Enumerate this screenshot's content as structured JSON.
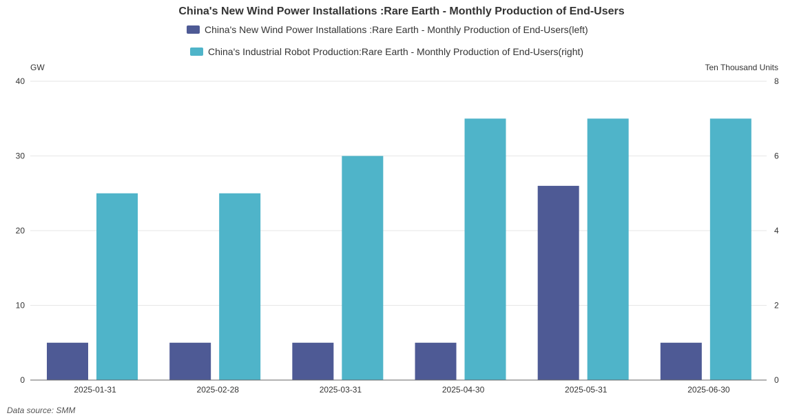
{
  "colors": {
    "series_left": "#4e5a95",
    "series_right": "#4fb4c9",
    "grid": "#e6e6e6",
    "axis": "#666666"
  },
  "source": "Data source:  SMM",
  "chart_data": {
    "type": "bar",
    "title": "China's New Wind Power Installations :Rare Earth - Monthly Production of End-Users",
    "categories": [
      "2025-01-31",
      "2025-02-28",
      "2025-03-31",
      "2025-04-30",
      "2025-05-31",
      "2025-06-30"
    ],
    "y_left": {
      "label": "GW",
      "ylim": [
        0,
        40
      ],
      "ticks": [
        0,
        10,
        20,
        30,
        40
      ]
    },
    "y_right": {
      "label": "Ten Thousand Units",
      "ylim": [
        0,
        8
      ],
      "ticks": [
        0,
        2,
        4,
        6,
        8
      ]
    },
    "grid": true,
    "legend_position": "top-center",
    "series": [
      {
        "name": "China's New Wind Power Installations :Rare Earth - Monthly Production of End-Users(left)",
        "axis": "left",
        "values": [
          5,
          5,
          5,
          5,
          26,
          5
        ]
      },
      {
        "name": "China's Industrial Robot Production:Rare Earth - Monthly Production of End-Users(right)",
        "axis": "right",
        "values": [
          5,
          5,
          6,
          7,
          7,
          7
        ]
      }
    ]
  }
}
